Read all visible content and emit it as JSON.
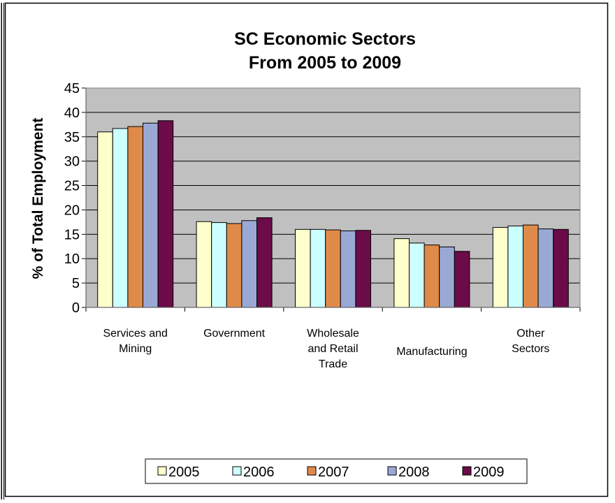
{
  "chart_data": {
    "type": "bar",
    "title": [
      "SC Economic Sectors",
      "From 2005 to 2009"
    ],
    "xlabel": "",
    "ylabel": "% of Total Employment",
    "ylim": [
      0,
      45
    ],
    "yticks": [
      "0",
      "5",
      "10",
      "15",
      "20",
      "25",
      "30",
      "35",
      "40",
      "45"
    ],
    "grid": true,
    "legend_position": "bottom",
    "categories": [
      [
        "Services and",
        "Mining"
      ],
      [
        "Government"
      ],
      [
        "Wholesale",
        "and Retail",
        "Trade"
      ],
      [
        "Manufacturing"
      ],
      [
        "Other",
        "Sectors"
      ]
    ],
    "series": [
      {
        "name": "2005",
        "color": "#FFFFCC",
        "values": [
          36.0,
          17.6,
          16.0,
          14.1,
          16.4
        ]
      },
      {
        "name": "2006",
        "color": "#CCFFFF",
        "values": [
          36.7,
          17.4,
          16.0,
          13.2,
          16.7
        ]
      },
      {
        "name": "2007",
        "color": "#E08A4A",
        "values": [
          37.1,
          17.2,
          15.9,
          12.8,
          16.9
        ]
      },
      {
        "name": "2008",
        "color": "#99A9D4",
        "values": [
          37.8,
          17.8,
          15.7,
          12.4,
          16.1
        ]
      },
      {
        "name": "2009",
        "color": "#6B0B48",
        "values": [
          38.3,
          18.4,
          15.8,
          11.5,
          16.0
        ]
      }
    ],
    "plot_background": "#C0C0C0"
  }
}
